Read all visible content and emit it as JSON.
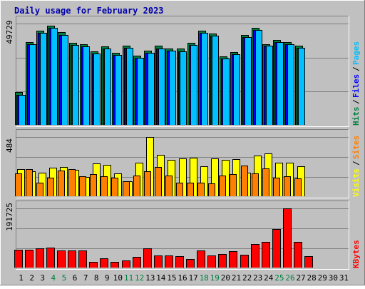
{
  "chart_data": {
    "type": "bar",
    "title": "Daily usage for February 2023",
    "x": [
      "1",
      "2",
      "3",
      "4",
      "5",
      "6",
      "7",
      "8",
      "9",
      "10",
      "11",
      "12",
      "13",
      "14",
      "15",
      "16",
      "17",
      "18",
      "19",
      "20",
      "21",
      "22",
      "23",
      "24",
      "25",
      "26",
      "27",
      "28",
      "29",
      "30",
      "31"
    ],
    "weekend_days": [
      4,
      5,
      11,
      12,
      18,
      19,
      25,
      26
    ],
    "panels": [
      {
        "name": "pages-files-hits",
        "max_tick": "49729",
        "ymax": 49729,
        "side_labels": [
          {
            "text": "Hits",
            "color": "#008040"
          },
          {
            "text": "Files",
            "color": "#0000ff"
          },
          {
            "text": "Pages",
            "color": "#00c0ff"
          }
        ],
        "series": [
          {
            "name": "Hits",
            "color": "#008040",
            "values": [
              16000,
              40500,
              46300,
              48600,
              45500,
              40300,
              39700,
              36000,
              38500,
              35200,
              39000,
              33900,
              36300,
              38700,
              37400,
              37300,
              40300,
              46200,
              45000,
              33700,
              35800,
              44000,
              47600,
              39700,
              41700,
              40700,
              38900,
              null,
              null,
              null,
              null
            ]
          },
          {
            "name": "Files",
            "color": "#0000ff",
            "values": [
              14800,
              39500,
              45200,
              47500,
              44300,
              39200,
              38600,
              35000,
              37400,
              34200,
              37900,
              32800,
              35300,
              37600,
              36300,
              36200,
              39300,
              45100,
              43900,
              32700,
              34800,
              43000,
              46500,
              38700,
              40600,
              39600,
              37900,
              null,
              null,
              null,
              null
            ]
          },
          {
            "name": "Pages",
            "color": "#00c0ff",
            "values": [
              14800,
              39500,
              45200,
              47500,
              44300,
              39200,
              38600,
              35000,
              37400,
              34200,
              37900,
              32800,
              35300,
              37600,
              36300,
              36200,
              39300,
              45100,
              43900,
              32700,
              34800,
              43000,
              46500,
              38700,
              40600,
              39600,
              37900,
              null,
              null,
              null,
              null
            ]
          }
        ]
      },
      {
        "name": "visits-sites",
        "max_tick": "484",
        "ymax": 484,
        "side_labels": [
          {
            "text": "Visits",
            "color": "#ffff00"
          },
          {
            "text": "Sites",
            "color": "#ff8000"
          }
        ],
        "series": [
          {
            "name": "Visits",
            "color": "#ffff00",
            "values": [
              219,
              206,
              192,
              236,
              240,
              217,
              156,
              266,
              255,
              189,
              120,
              273,
              484,
              340,
              300,
              309,
              312,
              244,
              309,
              300,
              306,
              193,
              330,
              350,
              275,
              274,
              244,
              null,
              null,
              null,
              null
            ]
          },
          {
            "name": "Sites",
            "color": "#ff8000",
            "values": [
              186,
              219,
              112,
              150,
              212,
              219,
              165,
              181,
              166,
              149,
              122,
              170,
              203,
              240,
              168,
              108,
              109,
              110,
              104,
              167,
              178,
              253,
              184,
              228,
              149,
              166,
              143,
              null,
              null,
              null,
              null
            ]
          }
        ]
      },
      {
        "name": "kbytes",
        "max_tick": "191725",
        "ymax": 191725,
        "side_labels": [
          {
            "text": "KBytes",
            "color": "#ff0000"
          }
        ],
        "series": [
          {
            "name": "KBytes",
            "color": "#ff0000",
            "values": [
              58000,
              58000,
              62000,
              64000,
              56000,
              56000,
              55000,
              18000,
              30000,
              18000,
              22000,
              35000,
              62000,
              39000,
              39000,
              37000,
              28000,
              56000,
              40000,
              44000,
              52000,
              42000,
              76000,
              84000,
              124000,
              191725,
              84000,
              37000,
              null,
              null,
              null
            ]
          }
        ]
      }
    ]
  }
}
